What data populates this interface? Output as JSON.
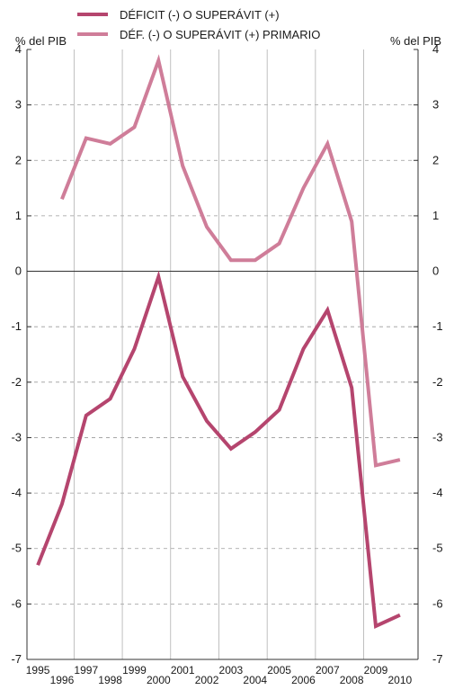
{
  "legend": [
    {
      "label": "DÉFICIT (-) O SUPERÁVIT (+)",
      "color": "#b5456e"
    },
    {
      "label": "DÉF. (-) O SUPERÁVIT (+) PRIMARIO",
      "color": "#cf7d99"
    }
  ],
  "left_axis_label": "% del PIB",
  "right_axis_label": "% del PIB",
  "chart_data": {
    "type": "line",
    "title": "",
    "xlabel": "",
    "ylabel": "% del PIB",
    "x": [
      1995,
      1996,
      1997,
      1998,
      1999,
      2000,
      2001,
      2002,
      2003,
      2004,
      2005,
      2006,
      2007,
      2008,
      2009,
      2010
    ],
    "xlim": [
      1994.55,
      2010.75
    ],
    "ylim": [
      -7,
      4
    ],
    "yticks": [
      4,
      3,
      2,
      1,
      0,
      -1,
      -2,
      -3,
      -4,
      -5,
      -6,
      -7
    ],
    "grid": true,
    "legend_position": "top",
    "series": [
      {
        "name": "DÉFICIT (-) O SUPERÁVIT (+)",
        "color": "#b5456e",
        "values": [
          -5.3,
          -4.2,
          -2.6,
          -2.3,
          -1.4,
          -0.1,
          -1.9,
          -2.7,
          -3.2,
          -2.9,
          -2.5,
          -1.4,
          -0.7,
          -2.1,
          -6.4,
          -6.2
        ]
      },
      {
        "name": "DÉF. (-) O SUPERÁVIT (+) PRIMARIO",
        "color": "#cf7d99",
        "values": [
          null,
          1.3,
          2.4,
          2.3,
          2.6,
          3.8,
          1.9,
          0.8,
          0.2,
          0.2,
          0.5,
          1.5,
          2.3,
          0.9,
          -3.5,
          -3.4
        ]
      }
    ]
  }
}
